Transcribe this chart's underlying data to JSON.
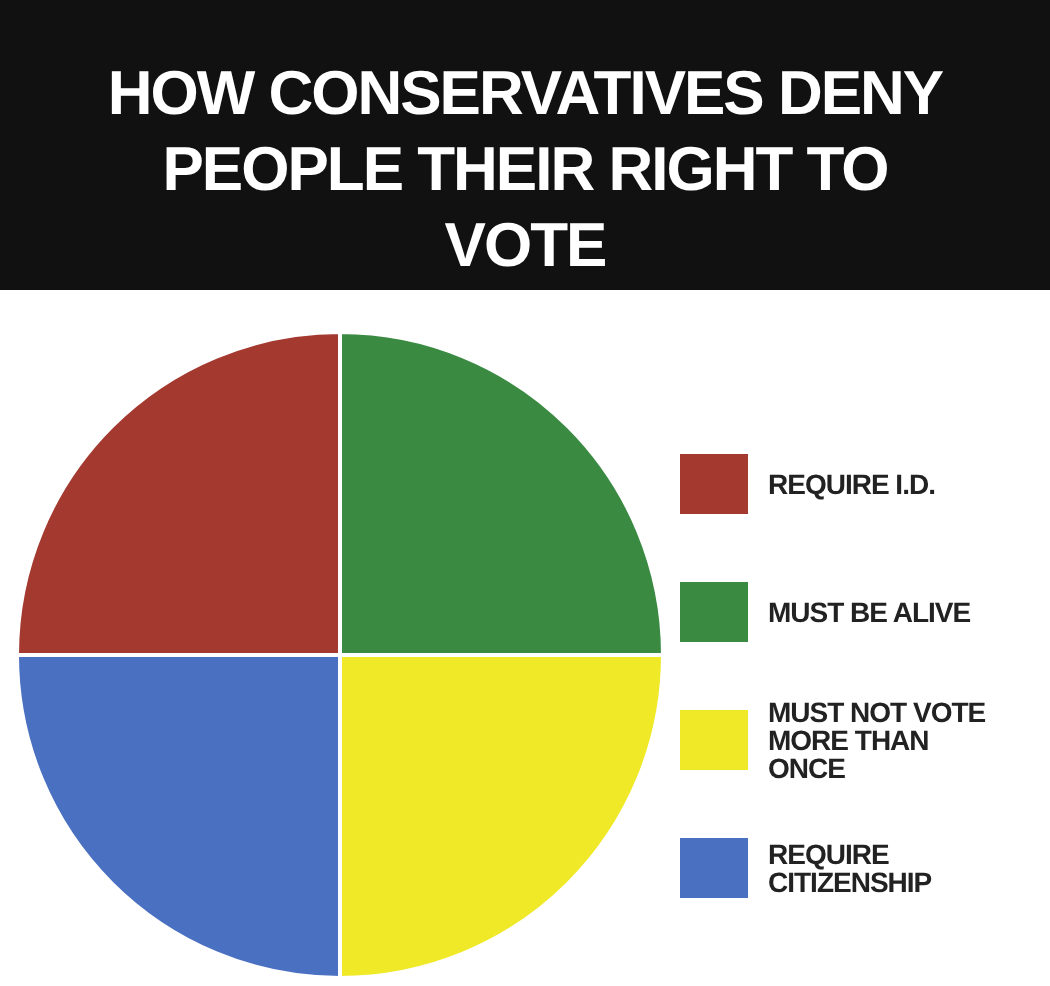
{
  "chart_data": {
    "type": "pie",
    "title": "HOW CONSERVATIVES DENY PEOPLE THEIR RIGHT TO VOTE",
    "categories": [
      "REQUIRE I.D.",
      "MUST BE ALIVE",
      "MUST NOT VOTE MORE THAN ONCE",
      "REQUIRE CITIZENSHIP"
    ],
    "values": [
      25,
      25,
      25,
      25
    ],
    "colors": [
      "#a3392f",
      "#3a8a42",
      "#f0e927",
      "#4a70c2"
    ],
    "legend": "right"
  }
}
